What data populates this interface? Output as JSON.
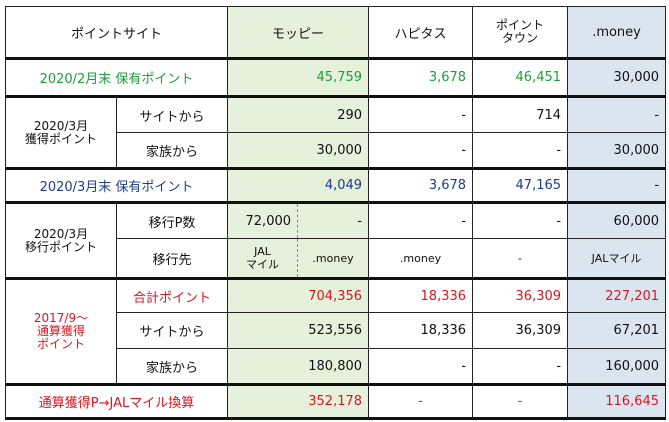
{
  "header": {
    "site": "ポイントサイト",
    "moppy": "モッピー",
    "hapitas": "ハピタス",
    "pointtown": "ポイント\nタウン",
    "money": ".money"
  },
  "row_feb": {
    "label": "2020/2月末 保有ポイント",
    "moppy": "45,759",
    "hapitas": "3,678",
    "pointtown": "46,451",
    "money": "30,000"
  },
  "mar_acquired": {
    "group": "2020/3月\n獲得ポイント",
    "site_label": "サイトから",
    "site": {
      "moppy": "290",
      "hapitas": "-",
      "pointtown": "714",
      "money": "-"
    },
    "family_label": "家族から",
    "family": {
      "moppy": "30,000",
      "hapitas": "-",
      "pointtown": "-",
      "money": "30,000"
    }
  },
  "row_mar_end": {
    "label": "2020/3月末 保有ポイント",
    "moppy": "4,049",
    "hapitas": "3,678",
    "pointtown": "47,165",
    "money": "-"
  },
  "mar_transfer": {
    "group": "2020/3月\n移行ポイント",
    "count_label": "移行P数",
    "count": {
      "moppy_jal": "72,000",
      "moppy_money": "-",
      "hapitas": "-",
      "pointtown": "-",
      "money": "60,000"
    },
    "dest_label": "移行先",
    "dest": {
      "moppy_jal": "JAL\nマイル",
      "moppy_money": ".money",
      "hapitas": ".money",
      "pointtown": "-",
      "money": "JALマイル"
    }
  },
  "total_acquired": {
    "group": "2017/9〜\n通算獲得\nポイント",
    "total_label": "合計ポイント",
    "total": {
      "moppy": "704,356",
      "hapitas": "18,336",
      "pointtown": "36,309",
      "money": "227,201"
    },
    "site_label": "サイトから",
    "site": {
      "moppy": "523,556",
      "hapitas": "18,336",
      "pointtown": "36,309",
      "money": "67,201"
    },
    "family_label": "家族から",
    "family": {
      "moppy": "180,800",
      "hapitas": "-",
      "pointtown": "-",
      "money": "160,000"
    }
  },
  "row_conversion": {
    "label": "通算獲得P→JALマイル換算",
    "moppy": "352,178",
    "hapitas": "-",
    "pointtown": "-",
    "money": "116,645"
  }
}
